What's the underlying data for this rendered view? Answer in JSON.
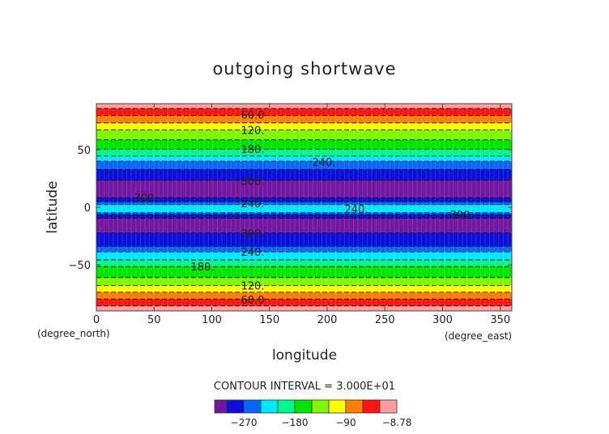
{
  "chart_data": {
    "type": "heatmap",
    "title": "outgoing shortwave",
    "xlabel": "longitude",
    "ylabel": "latitude",
    "x_unit_label": "(degree_east)",
    "y_unit_label": "(degree_north)",
    "xlim": [
      0,
      360
    ],
    "ylim": [
      -90,
      90
    ],
    "x_ticks": [
      "0",
      "50",
      "100",
      "150",
      "200",
      "250",
      "300",
      "350"
    ],
    "x_tick_values": [
      0,
      50,
      100,
      150,
      200,
      250,
      300,
      350
    ],
    "y_ticks": [
      "50",
      "0",
      "−50"
    ],
    "y_tick_values": [
      50,
      0,
      -50
    ],
    "contour_interval_text": "CONTOUR INTERVAL = 3.000E+01",
    "bands": [
      {
        "lat_top": 90,
        "lat_bottom": 85.8,
        "color": "#ff9c9c"
      },
      {
        "lat_top": 85.8,
        "lat_bottom": 79.7,
        "color": "#ff1414"
      },
      {
        "lat_top": 79.7,
        "lat_bottom": 73.3,
        "color": "#ff7f00"
      },
      {
        "lat_top": 73.3,
        "lat_bottom": 67.3,
        "color": "#ffff00"
      },
      {
        "lat_top": 67.3,
        "lat_bottom": 58.6,
        "color": "#7ff700"
      },
      {
        "lat_top": 58.6,
        "lat_bottom": 50.4,
        "color": "#00e600"
      },
      {
        "lat_top": 50.4,
        "lat_bottom": 44.5,
        "color": "#00f88c"
      },
      {
        "lat_top": 44.5,
        "lat_bottom": 39.9,
        "color": "#00e8ff"
      },
      {
        "lat_top": 39.9,
        "lat_bottom": 32.8,
        "color": "#0a64ff"
      },
      {
        "lat_top": 32.8,
        "lat_bottom": 23.4,
        "color": "#0a10d8"
      },
      {
        "lat_top": 23.4,
        "lat_bottom": 8.2,
        "color": "#7417a0"
      },
      {
        "lat_top": 8.2,
        "lat_bottom": 4.7,
        "color": "#0a10d8"
      },
      {
        "lat_top": 4.7,
        "lat_bottom": 2.3,
        "color": "#0a64ff"
      },
      {
        "lat_top": 2.3,
        "lat_bottom": -4.7,
        "color": "#00e8ff"
      },
      {
        "lat_top": -4.7,
        "lat_bottom": -6.3,
        "color": "#0a64ff"
      },
      {
        "lat_top": -6.3,
        "lat_bottom": -9.4,
        "color": "#0a10d8"
      },
      {
        "lat_top": -9.4,
        "lat_bottom": -22.3,
        "color": "#7417a0"
      },
      {
        "lat_top": -22.3,
        "lat_bottom": -34.0,
        "color": "#0a10d8"
      },
      {
        "lat_top": -34.0,
        "lat_bottom": -38.7,
        "color": "#0a64ff"
      },
      {
        "lat_top": -38.7,
        "lat_bottom": -45.7,
        "color": "#00e8ff"
      },
      {
        "lat_top": -45.7,
        "lat_bottom": -51.5,
        "color": "#00f88c"
      },
      {
        "lat_top": -51.5,
        "lat_bottom": -61.0,
        "color": "#00e600"
      },
      {
        "lat_top": -61.0,
        "lat_bottom": -68.0,
        "color": "#7ff700"
      },
      {
        "lat_top": -68.0,
        "lat_bottom": -73.8,
        "color": "#ffff00"
      },
      {
        "lat_top": -73.8,
        "lat_bottom": -79.7,
        "color": "#ff7f00"
      },
      {
        "lat_top": -79.7,
        "lat_bottom": -85.6,
        "color": "#ff1414"
      },
      {
        "lat_top": -85.6,
        "lat_bottom": -90,
        "color": "#ff9c9c"
      }
    ],
    "contour_labels": [
      {
        "text": "60.0",
        "lat": 80.5
      },
      {
        "text": "120.",
        "lat": 67
      },
      {
        "text": "180.",
        "lat": 50.5
      },
      {
        "text": "240.",
        "lat": 39.5
      },
      {
        "text": "300.",
        "lat": 23
      },
      {
        "text": "300.",
        "lat": 8.5
      },
      {
        "text": "240.",
        "lat": 3.5
      },
      {
        "text": "240.",
        "lat": -1.5
      },
      {
        "text": "300.",
        "lat": -6.5
      },
      {
        "text": "300.",
        "lat": -22.5
      },
      {
        "text": "240.",
        "lat": -38.5
      },
      {
        "text": "180.",
        "lat": -51.5
      },
      {
        "text": "120.",
        "lat": -68
      },
      {
        "text": "60.0",
        "lat": -80
      }
    ],
    "colorbar": {
      "colors": [
        "#7417a0",
        "#0a10d8",
        "#0a64ff",
        "#00e8ff",
        "#00f88c",
        "#00e600",
        "#7ff700",
        "#ffff00",
        "#ff7f00",
        "#ff1414",
        "#ff9c9c"
      ],
      "labels": [
        {
          "text": "−270",
          "boundary": 2
        },
        {
          "text": "−180",
          "boundary": 5
        },
        {
          "text": "−90",
          "boundary": 8
        },
        {
          "text": "−8.78",
          "boundary": 11
        }
      ]
    }
  }
}
